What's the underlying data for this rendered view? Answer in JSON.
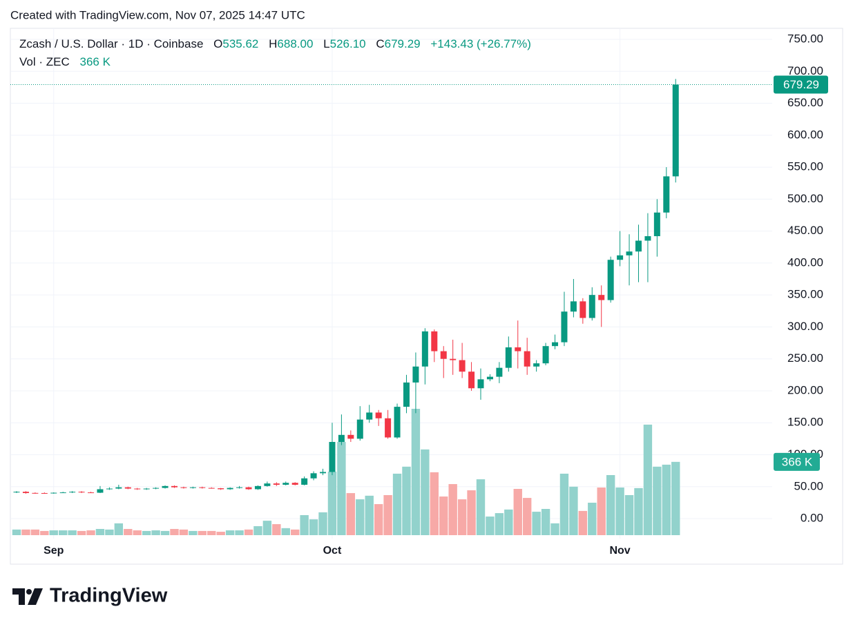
{
  "caption": "Created with TradingView.com, Nov 07, 2025 14:47 UTC",
  "brand": "TradingView",
  "chart_data": {
    "type": "candlestick",
    "title": "Zcash / U.S. Dollar · 1D · Coinbase",
    "open_label": "O",
    "open_value": "535.62",
    "high_label": "H",
    "high_value": "688.00",
    "low_label": "L",
    "low_value": "526.10",
    "close_label": "C",
    "close_value": "679.29",
    "change": "+143.43 (+26.77%)",
    "volume_title": "Vol · ZEC",
    "volume_label": "366 K",
    "up_color": "#089981",
    "down_color": "#f23645",
    "up_volume_color": "#92d2cc",
    "down_volume_color": "#f7a9a7",
    "grid": true,
    "categories": [
      null,
      null,
      null,
      null,
      "Sep",
      null,
      null,
      null,
      null,
      null,
      null,
      null,
      null,
      null,
      null,
      null,
      null,
      null,
      null,
      null,
      null,
      null,
      null,
      null,
      null,
      null,
      null,
      null,
      null,
      null,
      null,
      null,
      null,
      null,
      "Oct",
      null,
      null,
      null,
      null,
      null,
      null,
      null,
      null,
      null,
      null,
      null,
      null,
      null,
      null,
      null,
      null,
      null,
      null,
      null,
      null,
      null,
      null,
      null,
      null,
      null,
      null,
      null,
      null,
      null,
      null,
      "Nov",
      null,
      null,
      null,
      null,
      null,
      null
    ],
    "open": [
      41,
      42,
      40.2,
      40,
      39.5,
      40.5,
      41,
      42,
      41,
      40.5,
      46,
      47,
      49,
      47,
      46,
      47,
      48,
      51,
      49,
      48,
      49,
      48,
      47.5,
      46,
      48,
      49,
      46,
      51,
      55,
      53,
      56,
      53,
      63,
      71,
      73,
      120,
      131,
      125,
      155,
      166,
      157,
      127,
      175,
      213,
      238,
      293,
      262,
      250,
      248,
      230,
      204,
      218,
      222,
      236,
      268,
      262,
      238,
      243,
      270,
      276,
      324,
      340,
      314,
      350,
      342,
      405,
      412,
      418,
      435,
      442,
      479,
      535.62
    ],
    "high": [
      43,
      43,
      41,
      41,
      41,
      42,
      43,
      43,
      42,
      51,
      49,
      53,
      50,
      48,
      48,
      49,
      52,
      52,
      50,
      50,
      50,
      49,
      48,
      49,
      51,
      50,
      52,
      58,
      57,
      58,
      57,
      66,
      74,
      78,
      150,
      163,
      138,
      176,
      178,
      170,
      170,
      180,
      225,
      260,
      298,
      296,
      270,
      280,
      275,
      245,
      235,
      226,
      245,
      285,
      310,
      283,
      248,
      275,
      288,
      355,
      375,
      345,
      362,
      365,
      410,
      450,
      445,
      460,
      478,
      500,
      550,
      688
    ],
    "low": [
      40,
      39,
      39,
      39,
      39,
      40,
      40,
      40,
      40,
      40,
      45,
      46,
      46,
      45,
      45,
      46,
      47,
      48,
      47,
      47,
      47,
      47,
      45,
      45,
      47,
      45,
      45,
      50,
      51,
      52,
      52,
      52,
      60,
      68,
      68,
      115,
      120,
      122,
      150,
      145,
      125,
      125,
      165,
      165,
      210,
      245,
      220,
      225,
      220,
      200,
      186,
      215,
      212,
      230,
      235,
      225,
      230,
      240,
      265,
      270,
      315,
      305,
      310,
      300,
      338,
      395,
      365,
      370,
      370,
      410,
      470,
      526.1
    ],
    "close": [
      42,
      40,
      40,
      39.5,
      40.5,
      41,
      42,
      41,
      40.5,
      46,
      47,
      49,
      47,
      46,
      47,
      48,
      51,
      49,
      48,
      49,
      48,
      47.5,
      46,
      48,
      49,
      46,
      51,
      55,
      53,
      56,
      53,
      63,
      71,
      73,
      120,
      131,
      125,
      155,
      166,
      157,
      127,
      175,
      213,
      238,
      293,
      262,
      250,
      248,
      230,
      204,
      218,
      222,
      236,
      268,
      262,
      238,
      243,
      270,
      276,
      324,
      340,
      314,
      350,
      342,
      405,
      412,
      418,
      435,
      442,
      479,
      535.62,
      679.29
    ],
    "volume": [
      28,
      28,
      28,
      21,
      24,
      24,
      24,
      21,
      24,
      31,
      28,
      59,
      31,
      24,
      21,
      24,
      21,
      31,
      28,
      21,
      21,
      21,
      17,
      24,
      24,
      28,
      45,
      72,
      55,
      35,
      28,
      100,
      79,
      114,
      317,
      466,
      210,
      179,
      197,
      155,
      200,
      307,
      342,
      631,
      428,
      314,
      193,
      255,
      179,
      224,
      279,
      93,
      110,
      128,
      231,
      186,
      117,
      131,
      59,
      307,
      242,
      121,
      162,
      238,
      300,
      238,
      200,
      235,
      552,
      342,
      352,
      366
    ],
    "ylim": [
      -31.3,
      767.3
    ],
    "yticks": [
      {
        "value": 0,
        "label": "0.00"
      },
      {
        "value": 50,
        "label": "50.00"
      },
      {
        "value": 100,
        "label": "100.00"
      },
      {
        "value": 150,
        "label": "150.00"
      },
      {
        "value": 200,
        "label": "200.00"
      },
      {
        "value": 250,
        "label": "250.00"
      },
      {
        "value": 300,
        "label": "300.00"
      },
      {
        "value": 350,
        "label": "350.00"
      },
      {
        "value": 400,
        "label": "400.00"
      },
      {
        "value": 450,
        "label": "450.00"
      },
      {
        "value": 500,
        "label": "500.00"
      },
      {
        "value": 550,
        "label": "550.00"
      },
      {
        "value": 600,
        "label": "600.00"
      },
      {
        "value": 650,
        "label": "650.00"
      },
      {
        "value": 700,
        "label": "700.00"
      },
      {
        "value": 750,
        "label": "750.00"
      }
    ]
  }
}
